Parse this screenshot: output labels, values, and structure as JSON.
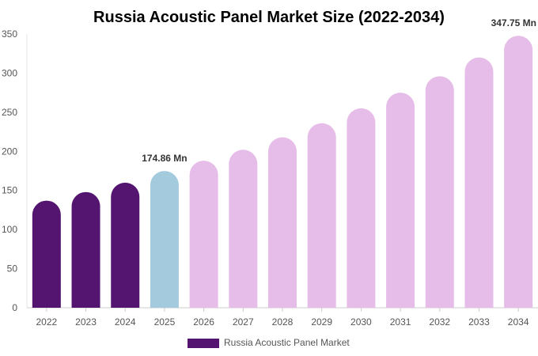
{
  "chart_data": {
    "type": "bar",
    "title": "Russia Acoustic Panel Market Size (2022-2034)",
    "categories": [
      "2022",
      "2023",
      "2024",
      "2025",
      "2026",
      "2027",
      "2028",
      "2029",
      "2030",
      "2031",
      "2032",
      "2033",
      "2034"
    ],
    "series": [
      {
        "name": "Russia Acoustic Panel Market",
        "values": [
          137,
          148,
          160,
          174.86,
          188,
          202,
          218,
          236,
          255,
          275,
          296,
          320,
          347.75
        ]
      }
    ],
    "bar_colors": [
      "#541570",
      "#541570",
      "#541570",
      "#a4cade",
      "#e6bce8",
      "#e6bce8",
      "#e6bce8",
      "#e6bce8",
      "#e6bce8",
      "#e6bce8",
      "#e6bce8",
      "#e6bce8",
      "#e6bce8"
    ],
    "legend_color": "#541570",
    "data_labels": [
      {
        "index": 3,
        "text": "174.86 Mn"
      },
      {
        "index": 12,
        "text": "347.75 Mn"
      }
    ],
    "y_ticks": [
      0,
      50,
      100,
      150,
      200,
      250,
      300,
      350
    ],
    "ylim": [
      0,
      350
    ],
    "grid": false,
    "legend_position": "bottom"
  }
}
